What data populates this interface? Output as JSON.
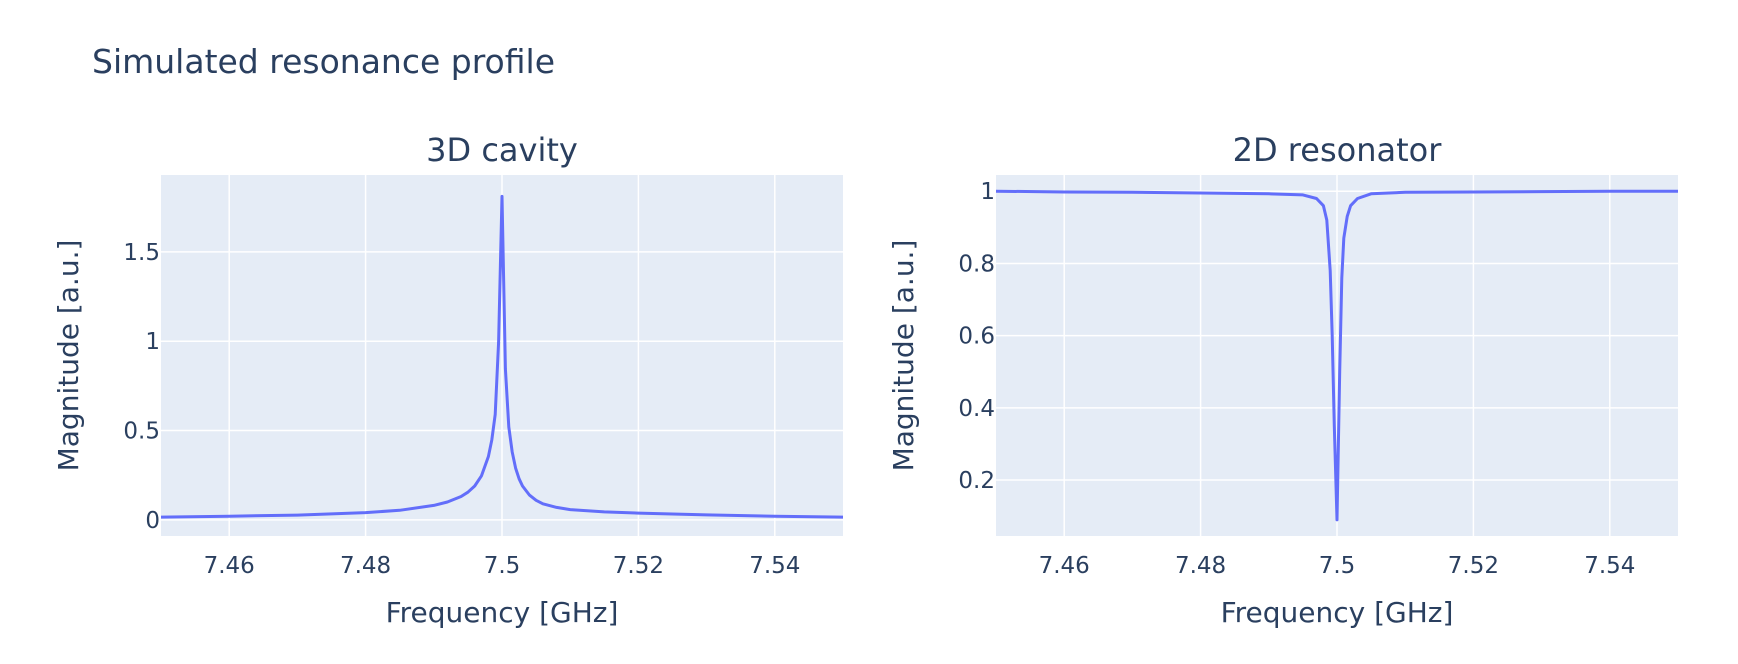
{
  "figure": {
    "title": "Simulated resonance profile"
  },
  "chart_data": [
    {
      "type": "line",
      "title": "3D cavity",
      "xlabel": "Frequency [GHz]",
      "ylabel": "Magnitude [a.u.]",
      "xlim": [
        7.45,
        7.55
      ],
      "ylim": [
        -0.09,
        1.93
      ],
      "xticks": [
        7.46,
        7.48,
        7.5,
        7.52,
        7.54
      ],
      "xtick_labels": [
        "7.46",
        "7.48",
        "7.5",
        "7.52",
        "7.54"
      ],
      "yticks": [
        0,
        0.5,
        1,
        1.5
      ],
      "ytick_labels": [
        "0",
        "0.5",
        "1",
        "1.5"
      ],
      "grid": true,
      "legend": false,
      "series": [
        {
          "color": "#636efa",
          "x": [
            7.45,
            7.46,
            7.47,
            7.48,
            7.485,
            7.49,
            7.492,
            7.494,
            7.495,
            7.496,
            7.497,
            7.498,
            7.4985,
            7.499,
            7.4995,
            7.5,
            7.5005,
            7.501,
            7.5015,
            7.502,
            7.5025,
            7.503,
            7.504,
            7.505,
            7.506,
            7.508,
            7.51,
            7.515,
            7.52,
            7.53,
            7.54,
            7.55
          ],
          "values": [
            0.016,
            0.021,
            0.027,
            0.041,
            0.054,
            0.081,
            0.1,
            0.131,
            0.155,
            0.19,
            0.247,
            0.355,
            0.447,
            0.59,
            0.995,
            1.81,
            0.845,
            0.52,
            0.38,
            0.29,
            0.23,
            0.19,
            0.14,
            0.11,
            0.09,
            0.07,
            0.058,
            0.045,
            0.038,
            0.028,
            0.021,
            0.016
          ]
        }
      ]
    },
    {
      "type": "line",
      "title": "2D resonator",
      "xlabel": "Frequency [GHz]",
      "ylabel": "Magnitude [a.u.]",
      "xlim": [
        7.45,
        7.55
      ],
      "ylim": [
        0.045,
        1.045
      ],
      "xticks": [
        7.46,
        7.48,
        7.5,
        7.52,
        7.54
      ],
      "xtick_labels": [
        "7.46",
        "7.48",
        "7.5",
        "7.52",
        "7.54"
      ],
      "yticks": [
        0.2,
        0.4,
        0.6,
        0.8,
        1
      ],
      "ytick_labels": [
        "0.2",
        "0.4",
        "0.6",
        "0.8",
        "1"
      ],
      "grid": true,
      "legend": false,
      "series": [
        {
          "color": "#636efa",
          "x": [
            7.45,
            7.46,
            7.47,
            7.48,
            7.49,
            7.495,
            7.497,
            7.498,
            7.4985,
            7.499,
            7.4993,
            7.4996,
            7.5,
            7.5004,
            7.5007,
            7.501,
            7.5015,
            7.502,
            7.503,
            7.505,
            7.51,
            7.52,
            7.53,
            7.54,
            7.55
          ],
          "values": [
            1.0,
            0.998,
            0.997,
            0.995,
            0.993,
            0.99,
            0.98,
            0.96,
            0.92,
            0.78,
            0.6,
            0.35,
            0.09,
            0.5,
            0.76,
            0.87,
            0.93,
            0.96,
            0.98,
            0.993,
            0.997,
            0.998,
            0.999,
            1.0,
            1.0
          ]
        }
      ]
    }
  ]
}
